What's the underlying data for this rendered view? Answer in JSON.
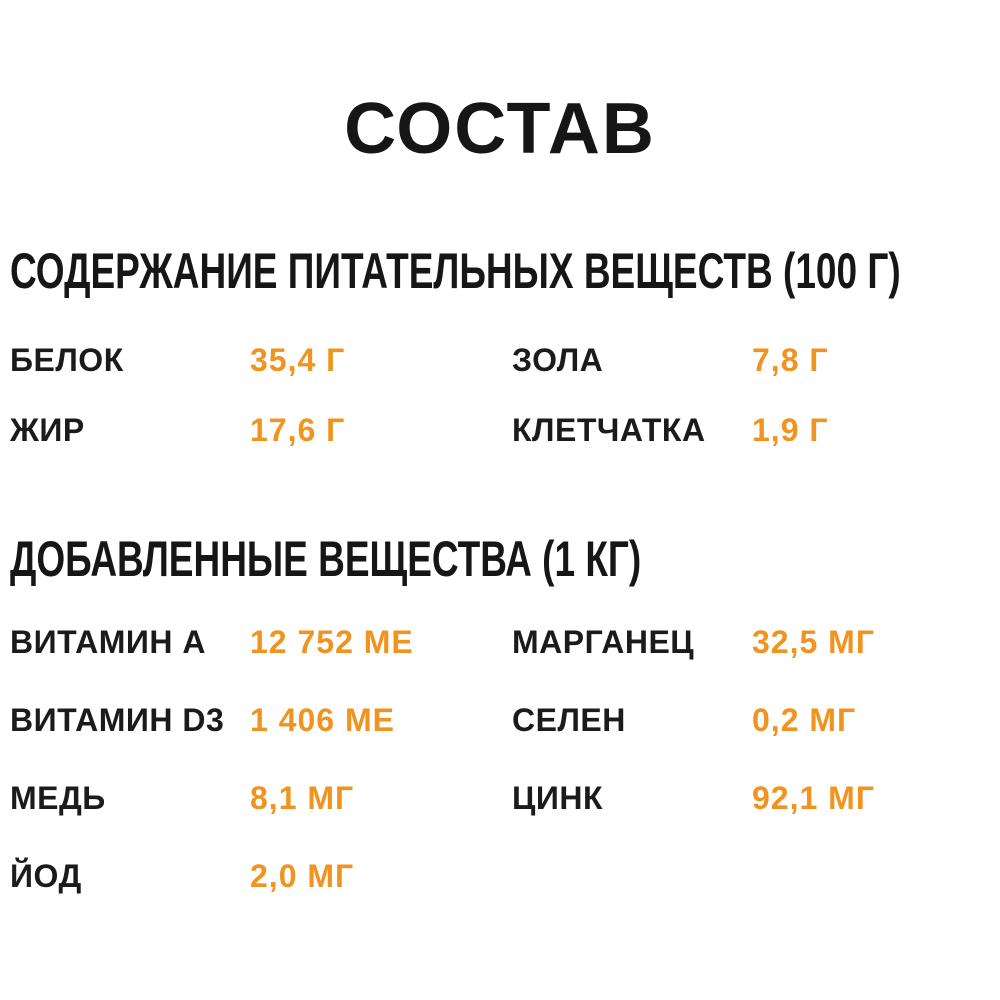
{
  "page": {
    "title": "СОСТАВ"
  },
  "colors": {
    "accent": "#F0931F",
    "text": "#1B1B1B",
    "background": "#FFFFFF"
  },
  "sections": [
    {
      "heading": "СОДЕРЖАНИЕ ПИТАТЕЛЬНЫХ ВЕЩЕСТВ (100 Г)",
      "columns": [
        {
          "rows": [
            {
              "label": "БЕЛОК",
              "value": "35,4 Г"
            },
            {
              "label": "ЖИР",
              "value": "17,6 Г"
            }
          ]
        },
        {
          "rows": [
            {
              "label": "ЗОЛА",
              "value": "7,8 Г"
            },
            {
              "label": "КЛЕТЧАТКА",
              "value": "1,9 Г"
            }
          ]
        }
      ]
    },
    {
      "heading": "ДОБАВЛЕННЫЕ ВЕЩЕСТВА (1 КГ)",
      "columns": [
        {
          "rows": [
            {
              "label": "ВИТАМИН A",
              "value": "12 752 МЕ"
            },
            {
              "label": "ВИТАМИН D3",
              "value": "1 406 МЕ"
            },
            {
              "label": "МЕДЬ",
              "value": "8,1 МГ"
            },
            {
              "label": "ЙОД",
              "value": "2,0 МГ"
            }
          ]
        },
        {
          "rows": [
            {
              "label": "МАРГАНЕЦ",
              "value": "32,5 МГ"
            },
            {
              "label": "СЕЛЕН",
              "value": "0,2 МГ"
            },
            {
              "label": "ЦИНК",
              "value": "92,1 МГ"
            }
          ]
        }
      ]
    }
  ]
}
